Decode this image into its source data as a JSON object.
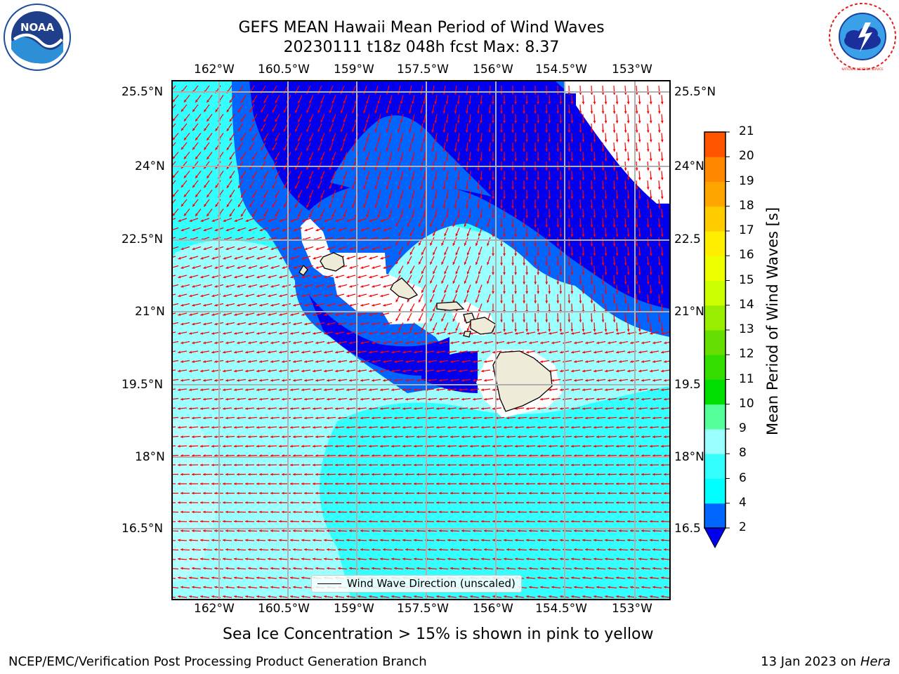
{
  "header": {
    "title_line1": "GEFS MEAN Hawaii Mean Period of Wind Waves",
    "title_line2": "20230111 t18z 048h fcst   Max: 8.37"
  },
  "logos": {
    "left": {
      "icon": "noaa-logo",
      "text": "NOAA"
    },
    "right": {
      "icon": "national-weather-service-logo",
      "text": "NATIONAL WEATHER SERVICE"
    }
  },
  "map": {
    "lon_labels": [
      "162°W",
      "160.5°W",
      "159°W",
      "157.5°W",
      "156°W",
      "154.5°W",
      "153°W"
    ],
    "lat_labels_left": [
      "25.5°N",
      "24°N",
      "22.5°N",
      "21°N",
      "19.5°N",
      "18°N",
      "16.5°N"
    ],
    "lat_labels_right": [
      "25.5°N",
      "24°N",
      "22.5",
      "21°N",
      "19.5",
      "18°N",
      "16.5"
    ],
    "legend": {
      "label": "Wind Wave Direction (unscaled)"
    },
    "arrow_color": "#ff0000",
    "land_color": "#efebd9"
  },
  "colorbar": {
    "label": "Mean Period of Wind Waves [s]",
    "ticks": [
      "2",
      "4",
      "6",
      "8",
      "9",
      "10",
      "11",
      "12",
      "13",
      "14",
      "15",
      "16",
      "17",
      "18",
      "19",
      "20",
      "21"
    ],
    "colors": [
      "#0066ff",
      "#00ffff",
      "#33ffff",
      "#99ffff",
      "#55ff99",
      "#00dd00",
      "#33dd00",
      "#66dd00",
      "#99ee00",
      "#ccff00",
      "#eeff00",
      "#ffee00",
      "#ffcc00",
      "#ffa500",
      "#ff8800",
      "#ff5500",
      "#ff2200",
      "#ff0000"
    ],
    "extend_color": "#0000ee"
  },
  "caption": "Sea Ice Concentration > 15% is shown in pink to yellow",
  "footer": {
    "left": "NCEP/EMC/Verification Post Processing Product Generation Branch",
    "right_prefix": "13 Jan 2023 on",
    "right_host": "Hera"
  }
}
